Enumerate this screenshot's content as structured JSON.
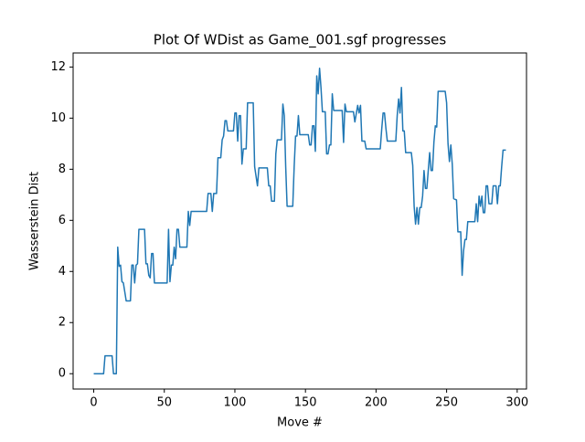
{
  "chart_data": {
    "type": "line",
    "title": "Plot Of WDist as Game_001.sgf progresses",
    "x_label": "Move #",
    "y_label": "Wasserstein Dist",
    "xlim": [
      -14.6,
      306.6
    ],
    "ylim": [
      -0.6,
      12.55
    ],
    "xticks": [
      0,
      50,
      100,
      150,
      200,
      250,
      300
    ],
    "yticks": [
      0,
      2,
      4,
      6,
      8,
      10,
      12
    ],
    "series": [
      {
        "color": "#1f77b4",
        "x": [
          0,
          7,
          8,
          13,
          14,
          16,
          17,
          18,
          19,
          20,
          21,
          22,
          23,
          26,
          27,
          28,
          29,
          30,
          31,
          32,
          36,
          37,
          38,
          39,
          40,
          41,
          42,
          43,
          52,
          53,
          54,
          55,
          56,
          57,
          58,
          59,
          60,
          61,
          66,
          67,
          68,
          69,
          80,
          81,
          83,
          84,
          85,
          87,
          88,
          90,
          91,
          92,
          93,
          94,
          95,
          99,
          100,
          101,
          102,
          103,
          104,
          105,
          106,
          108,
          109,
          113,
          114,
          116,
          117,
          123,
          124,
          125,
          126,
          128,
          129,
          130,
          133,
          134,
          135,
          136,
          137,
          141,
          142,
          143,
          144,
          145,
          146,
          152,
          153,
          154,
          155,
          156,
          157,
          158,
          159,
          160,
          161,
          162,
          164,
          165,
          166,
          167,
          168,
          169,
          170,
          176,
          177,
          178,
          179,
          184,
          185,
          187,
          188,
          189,
          190,
          192,
          193,
          203,
          204,
          205,
          206,
          207,
          208,
          214,
          215,
          216,
          217,
          218,
          219,
          220,
          221,
          225,
          226,
          227,
          228,
          229,
          230,
          231,
          232,
          233,
          234,
          235,
          236,
          237,
          238,
          239,
          240,
          241,
          242,
          243,
          244,
          249,
          250,
          251,
          252,
          253,
          254,
          255,
          257,
          258,
          260,
          261,
          262,
          263,
          264,
          265,
          270,
          271,
          272,
          273,
          274,
          275,
          276,
          277,
          278,
          279,
          280,
          282,
          283,
          285,
          286,
          287,
          288,
          289,
          290,
          292
        ],
        "values": [
          0,
          0,
          0.7,
          0.7,
          0,
          0,
          4.95,
          4.2,
          4.25,
          3.6,
          3.55,
          3.2,
          2.85,
          2.85,
          4.25,
          4.25,
          3.55,
          4.25,
          4.3,
          5.65,
          5.65,
          4.3,
          4.3,
          3.85,
          3.75,
          4.7,
          4.7,
          3.55,
          3.55,
          5.65,
          3.6,
          4.25,
          4.25,
          4.95,
          4.5,
          5.65,
          5.65,
          4.95,
          4.95,
          6.35,
          5.8,
          6.35,
          6.35,
          7.05,
          7.05,
          6.35,
          7.05,
          7.05,
          8.45,
          8.45,
          9.15,
          9.3,
          9.9,
          9.9,
          9.5,
          9.5,
          10.2,
          10.2,
          9.1,
          10.1,
          10.1,
          8.2,
          8.8,
          8.8,
          10.6,
          10.6,
          8.1,
          7.35,
          8.05,
          8.05,
          7.35,
          7.35,
          6.75,
          6.75,
          8.6,
          9.15,
          9.15,
          10.55,
          10.1,
          8.1,
          6.55,
          6.55,
          8.1,
          9.3,
          9.3,
          10.1,
          9.35,
          9.35,
          8.95,
          8.95,
          9.7,
          9.7,
          8.7,
          11.65,
          10.95,
          11.95,
          11.2,
          10.25,
          10.25,
          8.6,
          8.6,
          8.95,
          8.95,
          10.95,
          10.3,
          10.3,
          9.05,
          10.55,
          10.25,
          10.25,
          9.85,
          10.5,
          10.2,
          10.5,
          9.1,
          9.1,
          8.8,
          8.8,
          9.55,
          10.2,
          10.2,
          9.6,
          9.1,
          9.1,
          10.1,
          10.75,
          10.2,
          11.2,
          9.5,
          9.5,
          8.65,
          8.65,
          8.15,
          6.55,
          5.85,
          6.5,
          5.85,
          6.5,
          6.5,
          6.95,
          7.95,
          7.25,
          7.25,
          7.95,
          8.65,
          7.95,
          7.95,
          9.05,
          9.7,
          9.65,
          11.05,
          11.05,
          10.6,
          9.0,
          8.3,
          8.95,
          8.2,
          6.85,
          6.8,
          5.55,
          5.55,
          3.85,
          4.8,
          5.25,
          5.25,
          5.95,
          5.95,
          6.65,
          5.95,
          6.95,
          6.55,
          6.95,
          6.3,
          6.3,
          7.35,
          7.35,
          6.65,
          6.65,
          7.35,
          7.35,
          6.65,
          7.35,
          7.35,
          8.1,
          8.75,
          8.75
        ]
      }
    ]
  }
}
